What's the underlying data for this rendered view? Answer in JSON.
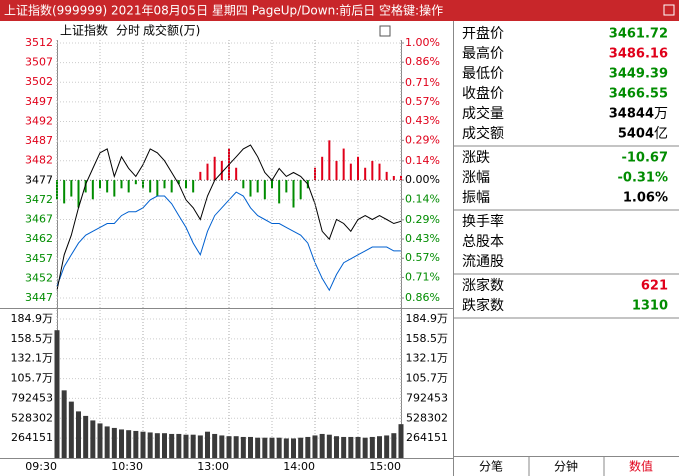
{
  "window_title": "上证指数(999999) 2021年08月05日 星期四 PageUp/Down:前后日 空格键:操作",
  "chart_header": {
    "name": "上证指数",
    "mode": "分时",
    "indicator": "成交额(万)"
  },
  "chart_data": [
    {
      "type": "line",
      "x": [
        0,
        5,
        10,
        15,
        20,
        25,
        30,
        35,
        40,
        45,
        50,
        55,
        60,
        65,
        70,
        75,
        80,
        85,
        90,
        95,
        100,
        105,
        110,
        115,
        120,
        125,
        130,
        135,
        140,
        145,
        150,
        155,
        160,
        165,
        170,
        175,
        180,
        185,
        190,
        195,
        200,
        205,
        210,
        215,
        220,
        225,
        230,
        235,
        240
      ],
      "xlim": [
        0,
        240
      ],
      "xminorticks": [
        30,
        90,
        150,
        210
      ],
      "ylim": [
        3447,
        3512
      ],
      "yticks": [
        3447,
        3452,
        3457,
        3462,
        3467,
        3472,
        3477,
        3482,
        3487,
        3492,
        3497,
        3502,
        3507,
        3512
      ],
      "y2lim": [
        -0.86,
        1.0
      ],
      "y2ticks": [
        {
          "value": -0.86,
          "label": "0.86%"
        },
        {
          "value": -0.71,
          "label": "0.71%"
        },
        {
          "value": -0.57,
          "label": "0.57%"
        },
        {
          "value": -0.43,
          "label": "0.43%"
        },
        {
          "value": -0.29,
          "label": "0.29%"
        },
        {
          "value": -0.14,
          "label": "0.14%"
        },
        {
          "value": 0,
          "label": "0.00%"
        },
        {
          "value": 0.14,
          "label": "0.14%"
        },
        {
          "value": 0.29,
          "label": "0.29%"
        },
        {
          "value": 0.43,
          "label": "0.43%"
        },
        {
          "value": 0.57,
          "label": "0.57%"
        },
        {
          "value": 0.71,
          "label": "0.71%"
        },
        {
          "value": 0.86,
          "label": "0.86%"
        },
        {
          "value": 1.0,
          "label": "1.00%"
        }
      ],
      "up_color": "#e0001a",
      "down_color": "#008c00",
      "flat_color": "#000000",
      "series": [
        {
          "color": "#000000",
          "values": [
            3449,
            3458,
            3463,
            3470,
            3476,
            3480,
            3484,
            3485,
            3478,
            3483,
            3480,
            3478,
            3481,
            3485,
            3484,
            3482,
            3479,
            3476,
            3472,
            3470,
            3467,
            3473,
            3477,
            3479,
            3481,
            3483,
            3485,
            3486,
            3483,
            3479,
            3477,
            3480,
            3478,
            3479,
            3478,
            3476,
            3471,
            3464,
            3462,
            3467,
            3466,
            3464,
            3467,
            3468,
            3467,
            3468,
            3467,
            3466,
            3466.55
          ]
        },
        {
          "color": "#0060d0",
          "values": [
            3450,
            3455,
            3458,
            3461,
            3463,
            3464,
            3465,
            3466,
            3466,
            3468,
            3469,
            3469,
            3470,
            3472,
            3473,
            3473,
            3471,
            3468,
            3465,
            3461,
            3458,
            3464,
            3468,
            3470,
            3472,
            3474,
            3473,
            3470,
            3468,
            3467,
            3466,
            3466,
            3465,
            3464,
            3463,
            3461,
            3456,
            3452,
            3449,
            3453,
            3456,
            3457,
            3458,
            3459,
            3460,
            3460,
            3460,
            3459,
            3459
          ]
        },
        {
          "type": "bar",
          "axis": "y2",
          "values": [
            -0.14,
            -0.17,
            -0.12,
            -0.2,
            -0.09,
            -0.14,
            -0.06,
            -0.09,
            -0.12,
            -0.06,
            -0.09,
            -0.03,
            -0.06,
            -0.09,
            -0.12,
            -0.06,
            -0.09,
            -0.03,
            -0.06,
            -0.09,
            0.06,
            0.12,
            0.17,
            0.14,
            0.23,
            0.09,
            -0.06,
            -0.12,
            -0.09,
            -0.14,
            -0.06,
            -0.17,
            -0.09,
            -0.2,
            -0.14,
            -0.06,
            0.09,
            0.17,
            0.29,
            0.14,
            0.23,
            0.12,
            0.17,
            0.09,
            0.14,
            0.12,
            0.06,
            0.03,
            0.03
          ]
        }
      ]
    },
    {
      "type": "bar",
      "x": [
        0,
        5,
        10,
        15,
        20,
        25,
        30,
        35,
        40,
        45,
        50,
        55,
        60,
        65,
        70,
        75,
        80,
        85,
        90,
        95,
        100,
        105,
        110,
        115,
        120,
        125,
        130,
        135,
        140,
        145,
        150,
        155,
        160,
        165,
        170,
        175,
        180,
        185,
        190,
        195,
        200,
        205,
        210,
        215,
        220,
        225,
        230,
        235,
        240
      ],
      "xlim": [
        0,
        240
      ],
      "xticks": [
        {
          "value": 0,
          "label": "09:30"
        },
        {
          "value": 60,
          "label": "10:30"
        },
        {
          "value": 120,
          "label": "13:00"
        },
        {
          "value": 180,
          "label": "14:00"
        },
        {
          "value": 240,
          "label": "15:00"
        }
      ],
      "ylim": [
        0,
        1849057
      ],
      "yticks": [
        264151,
        528302,
        792453,
        {
          "value": 1056604,
          "label": "105.7万"
        },
        {
          "value": 1320755,
          "label": "132.1万"
        },
        {
          "value": 1584906,
          "label": "158.5万"
        },
        {
          "value": 1849057,
          "label": "184.9万"
        }
      ],
      "color": "#3a3a3a",
      "values": [
        1700000,
        900000,
        750000,
        620000,
        560000,
        500000,
        460000,
        420000,
        400000,
        380000,
        370000,
        360000,
        350000,
        340000,
        330000,
        330000,
        320000,
        320000,
        310000,
        310000,
        300000,
        350000,
        320000,
        300000,
        290000,
        290000,
        280000,
        280000,
        270000,
        270000,
        270000,
        270000,
        260000,
        260000,
        270000,
        280000,
        300000,
        320000,
        310000,
        290000,
        280000,
        280000,
        280000,
        270000,
        280000,
        290000,
        300000,
        330000,
        450000
      ]
    }
  ],
  "quote_panel": [
    [
      {
        "label": "开盘价",
        "value": "3461.72",
        "color": "#008c00"
      },
      {
        "label": "最高价",
        "value": "3486.16",
        "color": "#e0001a"
      },
      {
        "label": "最低价",
        "value": "3449.39",
        "color": "#008c00"
      },
      {
        "label": "收盘价",
        "value": "3466.55",
        "color": "#008c00"
      },
      {
        "label": "成交量",
        "value": "34844",
        "unit": "万",
        "color": "#000000"
      },
      {
        "label": "成交额",
        "value": "5404",
        "unit": "亿",
        "color": "#000000"
      }
    ],
    [
      {
        "label": "涨跌",
        "value": "-10.67",
        "color": "#008c00"
      },
      {
        "label": "涨幅",
        "value": "-0.31%",
        "color": "#008c00"
      },
      {
        "label": "振幅",
        "value": "1.06%",
        "color": "#000000"
      }
    ],
    [
      {
        "label": "换手率"
      },
      {
        "label": "总股本"
      },
      {
        "label": "流通股"
      }
    ],
    [
      {
        "label": "涨家数",
        "value": "621",
        "color": "#e0001a"
      },
      {
        "label": "跌家数",
        "value": "1310",
        "color": "#008c00"
      }
    ]
  ],
  "tabs": [
    {
      "label": "分笔"
    },
    {
      "label": "分钟"
    },
    {
      "label": "数值",
      "active": true
    }
  ]
}
